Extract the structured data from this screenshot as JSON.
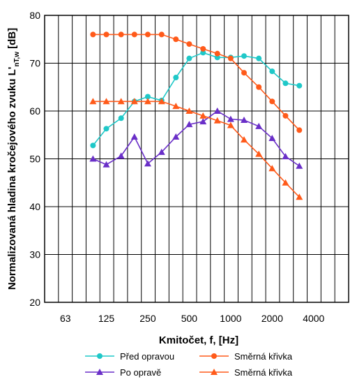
{
  "chart_data": {
    "type": "line",
    "xlabel": "Kmitočet, f, [Hz]",
    "ylabel_main": "Normalizovaná hladina kročejového zvuku L'",
    "ylabel_sub": "nT,w",
    "ylabel_unit": " [dB]",
    "x_scale": "log",
    "x_tick_labels": [
      "63",
      "125",
      "250",
      "500",
      "1000",
      "2000",
      "4000"
    ],
    "x_tick_values": [
      63,
      125,
      250,
      500,
      1000,
      2000,
      4000
    ],
    "y_ticks": [
      20,
      30,
      40,
      50,
      60,
      70,
      80
    ],
    "ylim": [
      20,
      80
    ],
    "grid": true,
    "legend_position": "bottom",
    "x": [
      100,
      125,
      160,
      200,
      250,
      315,
      400,
      500,
      630,
      800,
      1000,
      1250,
      1600,
      2000,
      2500,
      3150
    ],
    "series": [
      {
        "name": "Před opravou",
        "color": "#1fc8c8",
        "marker": "circle",
        "values": [
          52.8,
          56.3,
          58.5,
          62.0,
          63.0,
          62.2,
          67.0,
          71.0,
          72.2,
          71.2,
          71.2,
          71.5,
          71.0,
          68.3,
          65.8,
          65.3
        ]
      },
      {
        "name": "Směrná křivka",
        "color": "#ff5a1a",
        "marker": "circle",
        "values": [
          76,
          76,
          76,
          76,
          76,
          76,
          75,
          74,
          73,
          72,
          71,
          68,
          65,
          62,
          59,
          56
        ]
      },
      {
        "name": "Po opravě",
        "color": "#6a2fc8",
        "marker": "triangle",
        "values": [
          50.0,
          48.8,
          50.6,
          54.6,
          49.0,
          51.4,
          54.6,
          57.2,
          57.8,
          60.0,
          58.3,
          58.1,
          56.8,
          54.3,
          50.5,
          48.5
        ]
      },
      {
        "name": "Směrná křivka",
        "color": "#ff5a1a",
        "marker": "triangle",
        "values": [
          62,
          62,
          62,
          62,
          62,
          62,
          61,
          60,
          59,
          58,
          57,
          54,
          51,
          48,
          45,
          42
        ]
      }
    ]
  }
}
